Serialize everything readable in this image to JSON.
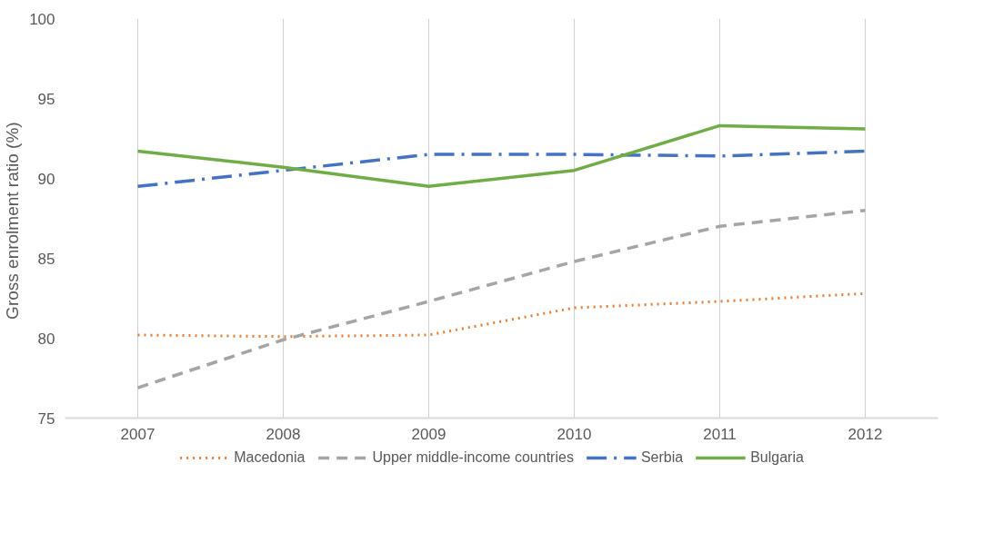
{
  "chart_data": {
    "type": "line",
    "ylabel": "Gross enrolment  ratio (%)",
    "x": [
      2007,
      2008,
      2009,
      2010,
      2011,
      2012
    ],
    "xlim": [
      2006.5,
      2012.5
    ],
    "xticks": [
      2007,
      2008,
      2009,
      2010,
      2011,
      2012
    ],
    "ylim": [
      75,
      100
    ],
    "yticks": [
      75,
      80,
      85,
      90,
      95,
      100
    ],
    "grid": "x",
    "legend": "bottom",
    "marker": "none",
    "series": [
      {
        "name": "Macedonia",
        "color": "#ed7d31",
        "line_style": "dotted",
        "values": [
          80.2,
          80.1,
          80.2,
          81.9,
          82.3,
          82.8
        ]
      },
      {
        "name": "Upper middle-income countries",
        "color": "#a5a5a5",
        "line_style": "dashed",
        "values": [
          76.9,
          79.9,
          82.3,
          84.8,
          87.0,
          88.0
        ]
      },
      {
        "name": "Serbia",
        "color": "#4472c4",
        "line_style": "dashdot",
        "values": [
          89.5,
          90.5,
          91.5,
          91.5,
          91.4,
          91.7
        ]
      },
      {
        "name": "Bulgaria",
        "color": "#70ad47",
        "line_style": "solid",
        "values": [
          91.7,
          90.7,
          89.5,
          90.5,
          93.3,
          93.1
        ]
      }
    ]
  }
}
